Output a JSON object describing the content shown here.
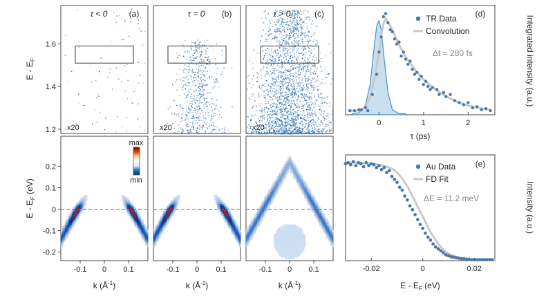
{
  "chart_data": [
    {
      "id": "a",
      "type": "scatter",
      "panel_label": "(a)",
      "condition": "τ < 0",
      "scale_note": "x20",
      "ylabel": "E - E",
      "ylabel_sub": "F",
      "ylim": [
        1.18,
        1.78
      ],
      "xlim": [
        -0.18,
        0.18
      ],
      "yticks": [
        1.2,
        1.4,
        1.6
      ],
      "ytick_labels": [
        "1.2",
        "1.4",
        "1.6"
      ],
      "box": [
        -0.12,
        0.12,
        1.51,
        1.59
      ],
      "density": "sparse"
    },
    {
      "id": "b",
      "type": "scatter",
      "panel_label": "(b)",
      "condition": "τ = 0",
      "scale_note": "x20",
      "ylim": [
        1.18,
        1.78
      ],
      "xlim": [
        -0.18,
        0.18
      ],
      "box": [
        -0.12,
        0.12,
        1.51,
        1.59
      ],
      "density": "medium"
    },
    {
      "id": "c",
      "type": "scatter",
      "panel_label": "(c)",
      "condition": "τ > 0",
      "scale_note": "x20",
      "ylim": [
        1.18,
        1.78
      ],
      "xlim": [
        -0.18,
        0.18
      ],
      "box": [
        -0.12,
        0.12,
        1.51,
        1.59
      ],
      "density": "dense"
    },
    {
      "id": "a2",
      "type": "heatmap",
      "xlabel": "k (Å",
      "xlabel_sup": "-1",
      "xlabel_end": ")",
      "ylabel": "E - E",
      "ylabel_sub": "F",
      "ylabel_unit": " (eV)",
      "xlim": [
        -0.18,
        0.18
      ],
      "ylim": [
        -0.24,
        0.34
      ],
      "xticks": [
        -0.1,
        0,
        0.1
      ],
      "xtick_labels": [
        "-0.1",
        "0",
        "0.1"
      ],
      "yticks": [
        -0.2,
        -0.1,
        0,
        0.1,
        0.2
      ],
      "ytick_labels": [
        "-0.2",
        "-0.1",
        "0",
        "0.1",
        "0.2"
      ],
      "fermi_level": 0,
      "colorbar": {
        "max_label": "max",
        "min_label": "min",
        "colors": [
          "#08306b",
          "#2171b5",
          "#deebf7",
          "#ffffff",
          "#fdd0a2",
          "#d94801",
          "#7f0000"
        ]
      },
      "intensity": "strong"
    },
    {
      "id": "b2",
      "type": "heatmap",
      "xlabel": "k (Å",
      "xlabel_sup": "-1",
      "xlabel_end": ")",
      "xlim": [
        -0.18,
        0.18
      ],
      "ylim": [
        -0.24,
        0.34
      ],
      "xticks": [
        -0.1,
        0,
        0.1
      ],
      "xtick_labels": [
        "-0.1",
        "0",
        "0.1"
      ],
      "fermi_level": 0,
      "intensity": "strong"
    },
    {
      "id": "c2",
      "type": "heatmap",
      "xlabel": "k (Å",
      "xlabel_sup": "-1",
      "xlabel_end": ")",
      "xlim": [
        -0.18,
        0.18
      ],
      "ylim": [
        -0.24,
        0.34
      ],
      "xticks": [
        -0.1,
        0,
        0.1
      ],
      "xtick_labels": [
        "-0.1",
        "0",
        "0.1"
      ],
      "fermi_level": 0,
      "intensity": "faint"
    },
    {
      "id": "d",
      "type": "scatter",
      "panel_label": "(d)",
      "xlabel": "τ (ps)",
      "ylabel": "Integrated intensity (a.u.)",
      "xlim": [
        -0.75,
        2.6
      ],
      "ylim": [
        0,
        1.08
      ],
      "xticks": [
        0,
        1,
        2
      ],
      "xtick_labels": [
        "0",
        "1",
        "2"
      ],
      "annotation": "Δt = 280 fs",
      "legend": [
        "TR Data",
        "Convolution"
      ],
      "colors": {
        "data": "#4a7aa8",
        "fit": "#c9c9c9",
        "pulse": "#4a90c8",
        "pulse_fill": "#b7d4ea"
      },
      "series": [
        {
          "name": "TR Data",
          "x": [
            -0.65,
            -0.55,
            -0.45,
            -0.4,
            -0.3,
            -0.25,
            -0.15,
            -0.05,
            0.0,
            0.05,
            0.1,
            0.15,
            0.2,
            0.25,
            0.3,
            0.35,
            0.4,
            0.45,
            0.5,
            0.55,
            0.6,
            0.65,
            0.7,
            0.75,
            0.8,
            0.85,
            0.9,
            0.95,
            1.0,
            1.05,
            1.1,
            1.15,
            1.2,
            1.3,
            1.35,
            1.45,
            1.5,
            1.6,
            1.7,
            1.8,
            1.9,
            2.0,
            2.1,
            2.2,
            2.3,
            2.4,
            2.5
          ],
          "y": [
            0.04,
            0.04,
            0.05,
            0.05,
            0.07,
            0.04,
            0.2,
            0.4,
            0.62,
            0.77,
            0.97,
            1.0,
            0.91,
            0.84,
            0.82,
            0.75,
            0.7,
            0.72,
            0.58,
            0.62,
            0.55,
            0.5,
            0.53,
            0.45,
            0.4,
            0.42,
            0.35,
            0.38,
            0.3,
            0.33,
            0.28,
            0.25,
            0.27,
            0.25,
            0.2,
            0.22,
            0.18,
            0.2,
            0.14,
            0.12,
            0.1,
            0.12,
            0.07,
            0.08,
            0.05,
            0.06,
            0.04
          ]
        },
        {
          "name": "Convolution",
          "x": [
            -0.7,
            -0.5,
            -0.4,
            -0.3,
            -0.2,
            -0.1,
            0.0,
            0.05,
            0.1,
            0.15,
            0.2,
            0.3,
            0.4,
            0.5,
            0.6,
            0.8,
            1.0,
            1.2,
            1.4,
            1.6,
            1.8,
            2.0,
            2.2,
            2.5
          ],
          "y": [
            0.04,
            0.04,
            0.05,
            0.08,
            0.17,
            0.36,
            0.62,
            0.78,
            0.9,
            0.95,
            0.92,
            0.84,
            0.74,
            0.65,
            0.57,
            0.45,
            0.35,
            0.27,
            0.21,
            0.16,
            0.12,
            0.09,
            0.07,
            0.05
          ]
        },
        {
          "name": "pulse",
          "x": [
            -0.6,
            -0.45,
            -0.3,
            -0.2,
            -0.1,
            -0.05,
            0.0,
            0.05,
            0.1,
            0.2,
            0.3,
            0.45,
            0.6
          ],
          "y": [
            0.01,
            0.02,
            0.1,
            0.3,
            0.7,
            0.88,
            0.93,
            0.84,
            0.62,
            0.22,
            0.05,
            0.01,
            0.01
          ]
        }
      ]
    },
    {
      "id": "e",
      "type": "scatter",
      "panel_label": "(e)",
      "xlabel": "E - E",
      "xlabel_sub": "F",
      "xlabel_unit": " (eV)",
      "ylabel": "Intensity (a.u.)",
      "xlim": [
        -0.03,
        0.028
      ],
      "ylim": [
        0,
        1.08
      ],
      "xticks": [
        -0.02,
        0,
        0.02
      ],
      "xtick_labels": [
        "-0.02",
        "0",
        "0.02"
      ],
      "annotation": "ΔE = 11.2 meV",
      "legend": [
        "Au Data",
        "FD Fit"
      ],
      "colors": {
        "data": "#4a7aa8",
        "fit": "#c9c9c9"
      },
      "series": [
        {
          "name": "Au Data",
          "x": [
            -0.03,
            -0.029,
            -0.028,
            -0.027,
            -0.026,
            -0.025,
            -0.024,
            -0.023,
            -0.022,
            -0.021,
            -0.02,
            -0.019,
            -0.018,
            -0.017,
            -0.016,
            -0.015,
            -0.014,
            -0.013,
            -0.012,
            -0.011,
            -0.01,
            -0.009,
            -0.008,
            -0.007,
            -0.006,
            -0.005,
            -0.004,
            -0.003,
            -0.002,
            -0.001,
            0.0,
            0.001,
            0.002,
            0.003,
            0.004,
            0.005,
            0.006,
            0.007,
            0.008,
            0.009,
            0.01,
            0.011,
            0.012,
            0.013,
            0.014,
            0.015,
            0.016,
            0.017,
            0.018,
            0.019,
            0.02,
            0.021,
            0.022,
            0.023,
            0.024,
            0.025,
            0.026,
            0.027
          ],
          "y": [
            0.99,
            1.0,
            0.98,
            1.01,
            0.97,
            1.0,
            0.99,
            0.96,
            1.0,
            0.97,
            0.99,
            0.98,
            0.95,
            0.97,
            0.93,
            0.95,
            0.9,
            0.92,
            0.86,
            0.83,
            0.8,
            0.75,
            0.72,
            0.66,
            0.62,
            0.56,
            0.52,
            0.47,
            0.42,
            0.37,
            0.33,
            0.28,
            0.24,
            0.21,
            0.17,
            0.14,
            0.12,
            0.1,
            0.08,
            0.06,
            0.05,
            0.04,
            0.035,
            0.03,
            0.025,
            0.02,
            0.02,
            0.015,
            0.015,
            0.01,
            0.01,
            0.01,
            0.01,
            0.01,
            0.01,
            0.01,
            0.01,
            0.01
          ]
        },
        {
          "name": "FD Fit",
          "x": [
            -0.03,
            -0.025,
            -0.02,
            -0.017,
            -0.014,
            -0.012,
            -0.01,
            -0.008,
            -0.006,
            -0.004,
            -0.002,
            0.0,
            0.002,
            0.004,
            0.006,
            0.008,
            0.01,
            0.013,
            0.016,
            0.02,
            0.024,
            0.028
          ],
          "y": [
            1.0,
            1.0,
            0.99,
            0.98,
            0.96,
            0.94,
            0.9,
            0.84,
            0.76,
            0.66,
            0.55,
            0.45,
            0.34,
            0.25,
            0.17,
            0.11,
            0.07,
            0.04,
            0.02,
            0.01,
            0.01,
            0.01
          ]
        }
      ]
    }
  ]
}
